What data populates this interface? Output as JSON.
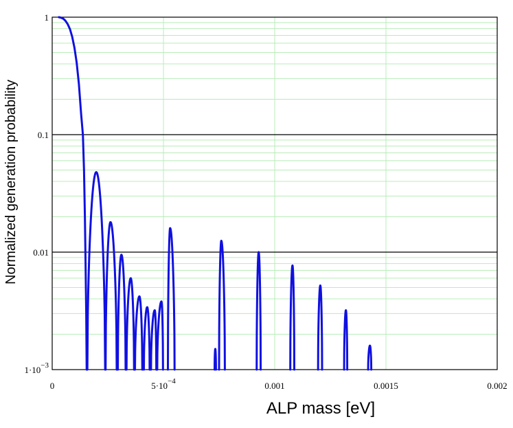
{
  "chart_data": {
    "type": "line",
    "title": "",
    "xlabel": "ALP mass [eV]",
    "ylabel": "Normalized generation probability",
    "xlim": [
      0,
      0.002
    ],
    "ylim": [
      0.001,
      1
    ],
    "yscale": "log",
    "grid": true,
    "legend": "none",
    "x_ticks": [
      {
        "value": 0,
        "label": "0"
      },
      {
        "value": 0.0005,
        "label": "5·10",
        "exp": "−4"
      },
      {
        "value": 0.001,
        "label": "0.001"
      },
      {
        "value": 0.0015,
        "label": "0.0015"
      },
      {
        "value": 0.002,
        "label": "0.002"
      }
    ],
    "y_ticks": [
      {
        "value": 1,
        "label": "1"
      },
      {
        "value": 0.1,
        "label": "0.1"
      },
      {
        "value": 0.01,
        "label": "0.01"
      },
      {
        "value": 0.001,
        "label": "1·10",
        "exp": "−3"
      }
    ],
    "colors": {
      "line": "#1010e0",
      "minor_grid": "#b8ecb8",
      "major_grid": "#000000"
    },
    "series": [
      {
        "main_curve": [
          [
            3e-05,
            1.0
          ],
          [
            4e-05,
            0.99
          ],
          [
            5e-05,
            0.97
          ],
          [
            6e-05,
            0.93
          ],
          [
            7e-05,
            0.87
          ],
          [
            8e-05,
            0.79
          ],
          [
            9e-05,
            0.68
          ],
          [
            0.0001,
            0.55
          ],
          [
            0.00011,
            0.41
          ],
          [
            0.00012,
            0.27
          ],
          [
            0.00013,
            0.15
          ],
          [
            0.000138,
            0.1
          ],
          [
            0.000143,
            0.05
          ],
          [
            0.000147,
            0.02
          ],
          [
            0.00015,
            0.008
          ],
          [
            0.000153,
            0.003
          ],
          [
            0.000155,
            0.001
          ]
        ],
        "peaks": [
          {
            "left": 0.000158,
            "center": 0.000198,
            "right": 0.000238,
            "peak": 0.048
          },
          {
            "left": 0.00024,
            "center": 0.000262,
            "right": 0.00029,
            "peak": 0.018
          },
          {
            "left": 0.000295,
            "center": 0.000311,
            "right": 0.00033,
            "peak": 0.0095
          },
          {
            "left": 0.000334,
            "center": 0.000353,
            "right": 0.000368,
            "peak": 0.006
          },
          {
            "left": 0.000372,
            "center": 0.000392,
            "right": 0.000405,
            "peak": 0.0042
          },
          {
            "left": 0.000412,
            "center": 0.000427,
            "right": 0.000438,
            "peak": 0.0034
          },
          {
            "left": 0.000444,
            "center": 0.000461,
            "right": 0.000468,
            "peak": 0.0032
          },
          {
            "left": 0.000472,
            "center": 0.000491,
            "right": 0.000498,
            "peak": 0.0038
          },
          {
            "left": 0.00052,
            "center": 0.00053,
            "right": 0.00055,
            "peak": 0.016
          },
          {
            "left": 0.00073,
            "center": 0.000733,
            "right": 0.000736,
            "peak": 0.0015
          },
          {
            "left": 0.00075,
            "center": 0.00076,
            "right": 0.000776,
            "peak": 0.0125
          },
          {
            "left": 0.000919,
            "center": 0.000928,
            "right": 0.000937,
            "peak": 0.01
          },
          {
            "left": 0.00107,
            "center": 0.00108,
            "right": 0.001088,
            "peak": 0.0077
          },
          {
            "left": 0.001195,
            "center": 0.001205,
            "right": 0.001213,
            "peak": 0.0052
          },
          {
            "left": 0.001312,
            "center": 0.00132,
            "right": 0.001326,
            "peak": 0.0032
          },
          {
            "left": 0.00142,
            "center": 0.001428,
            "right": 0.001434,
            "peak": 0.0016
          }
        ]
      }
    ]
  }
}
